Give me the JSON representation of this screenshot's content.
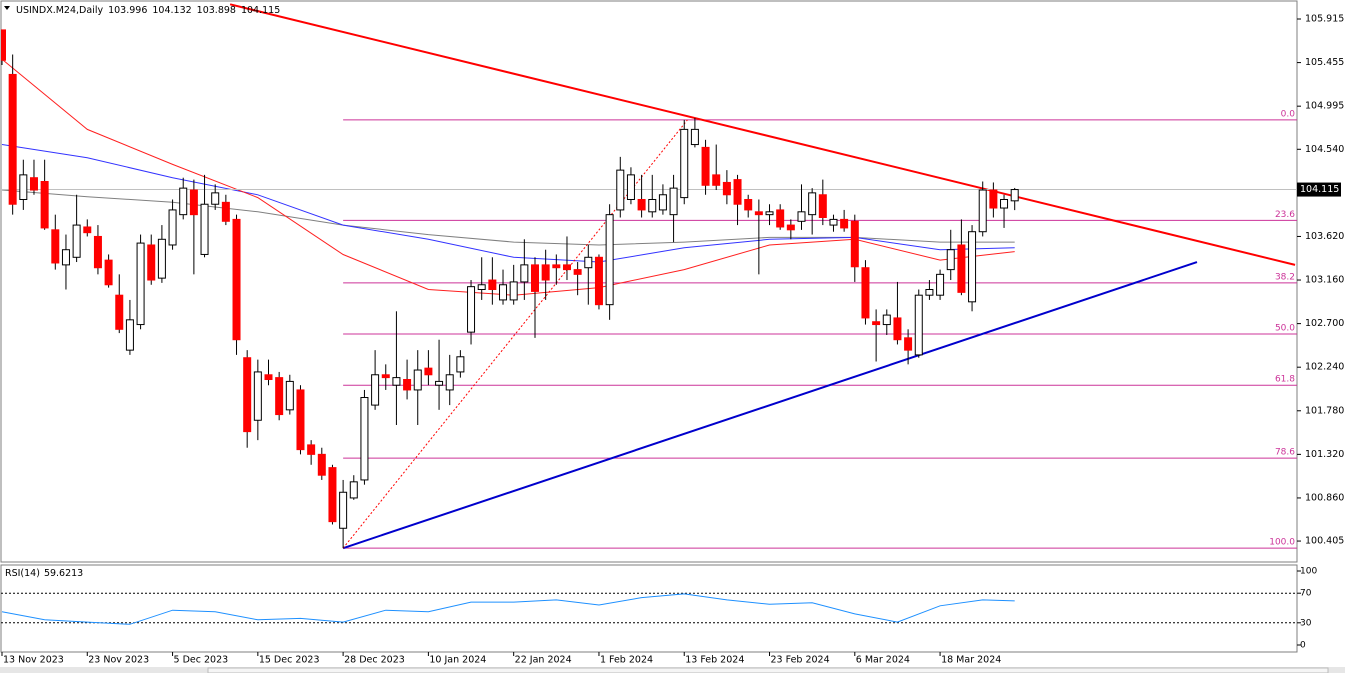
{
  "chart_data": [
    {
      "type": "candlestick",
      "title": "USINDX.M24,Daily",
      "categories": [
        "13 Nov 2023",
        null,
        null,
        null,
        null,
        null,
        null,
        null,
        "23 Nov 2023",
        null,
        null,
        null,
        null,
        null,
        null,
        null,
        "5 Dec 2023",
        null,
        null,
        null,
        null,
        null,
        null,
        null,
        "15 Dec 2023",
        null,
        null,
        null,
        null,
        null,
        null,
        null,
        "28 Dec 2023",
        null,
        null,
        null,
        null,
        null,
        null,
        null,
        "10 Jan 2024",
        null,
        null,
        null,
        null,
        null,
        null,
        null,
        "22 Jan 2024",
        null,
        null,
        null,
        null,
        null,
        null,
        null,
        "1 Feb 2024",
        null,
        null,
        null,
        null,
        null,
        null,
        null,
        "13 Feb 2024",
        null,
        null,
        null,
        null,
        null,
        null,
        null,
        "23 Feb 2024",
        null,
        null,
        null,
        null,
        null,
        null,
        null,
        "6 Mar 2024",
        null,
        null,
        null,
        null,
        null,
        null,
        null,
        "18 Mar 2024",
        null,
        null,
        null,
        null,
        null,
        null,
        null
      ],
      "candles": [
        [
          105.8,
          105.8,
          105.43,
          105.48
        ],
        [
          105.33,
          105.54,
          103.85,
          103.96
        ],
        [
          104.01,
          104.43,
          103.9,
          104.27
        ],
        [
          104.24,
          104.43,
          104.06,
          104.11
        ],
        [
          104.2,
          104.43,
          103.69,
          103.71
        ],
        [
          103.69,
          103.85,
          103.27,
          103.34
        ],
        [
          103.32,
          103.64,
          103.06,
          103.48
        ],
        [
          103.4,
          104.06,
          103.35,
          103.74
        ],
        [
          103.72,
          103.8,
          103.62,
          103.66
        ],
        [
          103.62,
          103.74,
          103.22,
          103.29
        ],
        [
          103.37,
          103.43,
          103.08,
          103.11
        ],
        [
          103.0,
          103.22,
          102.6,
          102.64
        ],
        [
          102.42,
          102.95,
          102.37,
          102.74
        ],
        [
          102.69,
          103.64,
          102.64,
          103.55
        ],
        [
          103.53,
          103.64,
          103.11,
          103.16
        ],
        [
          103.18,
          103.74,
          103.13,
          103.59
        ],
        [
          103.53,
          104.01,
          103.48,
          103.9
        ],
        [
          103.85,
          104.24,
          103.8,
          104.13
        ],
        [
          104.11,
          104.22,
          103.22,
          103.85
        ],
        [
          103.43,
          104.27,
          103.4,
          103.96
        ],
        [
          103.96,
          104.17,
          103.9,
          104.08
        ],
        [
          103.98,
          104.06,
          103.74,
          103.78
        ],
        [
          103.8,
          103.85,
          102.37,
          102.53
        ],
        [
          102.34,
          102.42,
          101.39,
          101.56
        ],
        [
          101.68,
          102.32,
          101.47,
          102.19
        ],
        [
          102.16,
          102.32,
          102.05,
          102.11
        ],
        [
          102.13,
          102.19,
          101.68,
          101.74
        ],
        [
          101.79,
          102.16,
          101.74,
          102.09
        ],
        [
          102.0,
          102.05,
          101.32,
          101.37
        ],
        [
          101.42,
          101.47,
          101.21,
          101.32
        ],
        [
          101.32,
          101.39,
          101.05,
          101.1
        ],
        [
          101.18,
          101.21,
          100.58,
          100.61
        ],
        [
          100.54,
          101.05,
          100.33,
          100.92
        ],
        [
          100.86,
          101.1,
          100.84,
          101.03
        ],
        [
          101.05,
          102.0,
          101.0,
          101.92
        ],
        [
          101.84,
          102.42,
          101.79,
          102.16
        ],
        [
          102.16,
          102.27,
          102.0,
          102.13
        ],
        [
          102.05,
          102.83,
          101.63,
          102.13
        ],
        [
          102.11,
          102.32,
          101.9,
          102.0
        ],
        [
          102.0,
          102.42,
          101.63,
          102.21
        ],
        [
          102.23,
          102.42,
          102.05,
          102.16
        ],
        [
          102.05,
          102.53,
          101.79,
          102.09
        ],
        [
          102.0,
          102.37,
          101.84,
          102.16
        ],
        [
          102.19,
          102.42,
          102.13,
          102.35
        ],
        [
          102.61,
          103.16,
          102.48,
          103.09
        ],
        [
          103.06,
          103.4,
          102.95,
          103.11
        ],
        [
          103.16,
          103.4,
          102.9,
          103.06
        ],
        [
          102.95,
          103.27,
          102.9,
          103.11
        ],
        [
          102.95,
          103.32,
          102.9,
          103.14
        ],
        [
          103.14,
          103.59,
          102.95,
          103.32
        ],
        [
          103.32,
          103.4,
          102.55,
          103.04
        ],
        [
          103.32,
          103.48,
          102.95,
          103.16
        ],
        [
          103.32,
          103.43,
          103.11,
          103.29
        ],
        [
          103.32,
          103.62,
          103.16,
          103.27
        ],
        [
          103.27,
          103.35,
          103.0,
          103.22
        ],
        [
          103.29,
          103.53,
          102.9,
          103.4
        ],
        [
          103.4,
          103.43,
          102.85,
          102.9
        ],
        [
          102.9,
          103.96,
          102.74,
          103.85
        ],
        [
          103.9,
          104.46,
          103.82,
          104.32
        ],
        [
          104.01,
          104.35,
          103.96,
          104.27
        ],
        [
          104.01,
          104.27,
          103.82,
          103.9
        ],
        [
          103.88,
          104.27,
          103.82,
          104.01
        ],
        [
          103.9,
          104.17,
          103.85,
          104.06
        ],
        [
          103.85,
          104.27,
          103.56,
          104.13
        ],
        [
          104.03,
          104.85,
          103.96,
          104.75
        ],
        [
          104.59,
          104.87,
          104.56,
          104.75
        ],
        [
          104.56,
          104.64,
          104.06,
          104.16
        ],
        [
          104.27,
          104.59,
          104.11,
          104.16
        ],
        [
          104.19,
          104.32,
          103.96,
          104.06
        ],
        [
          104.22,
          104.27,
          103.74,
          103.96
        ],
        [
          104.01,
          104.06,
          103.82,
          103.9
        ],
        [
          103.88,
          104.01,
          103.22,
          103.85
        ],
        [
          103.85,
          103.96,
          103.74,
          103.88
        ],
        [
          103.9,
          103.96,
          103.69,
          103.72
        ],
        [
          103.74,
          103.8,
          103.59,
          103.69
        ],
        [
          103.78,
          104.17,
          103.69,
          103.88
        ],
        [
          103.85,
          104.13,
          103.64,
          104.08
        ],
        [
          104.06,
          104.22,
          103.74,
          103.82
        ],
        [
          103.74,
          103.85,
          103.67,
          103.8
        ],
        [
          103.8,
          103.9,
          103.67,
          103.71
        ],
        [
          103.78,
          103.85,
          103.14,
          103.3
        ],
        [
          103.29,
          103.37,
          102.69,
          102.76
        ],
        [
          102.72,
          102.85,
          102.3,
          102.69
        ],
        [
          102.69,
          102.85,
          102.58,
          102.79
        ],
        [
          102.76,
          103.14,
          102.48,
          102.53
        ],
        [
          102.55,
          102.64,
          102.27,
          102.42
        ],
        [
          102.37,
          103.06,
          102.34,
          103.0
        ],
        [
          103.0,
          103.16,
          102.95,
          103.06
        ],
        [
          103.0,
          103.27,
          102.95,
          103.22
        ],
        [
          103.27,
          103.69,
          103.16,
          103.48
        ],
        [
          103.53,
          103.8,
          103.0,
          103.03
        ],
        [
          102.93,
          103.74,
          102.83,
          103.67
        ],
        [
          103.67,
          104.2,
          103.62,
          104.11
        ],
        [
          104.11,
          104.19,
          103.82,
          103.92
        ],
        [
          103.92,
          104.06,
          103.71,
          104.01
        ],
        [
          103.996,
          104.132,
          103.898,
          104.115
        ]
      ],
      "up_color": "#ffffff",
      "down_color": "#ff0000",
      "ylim": [
        100.205,
        106.084
      ],
      "yticks": [
        100.405,
        {
          "value": 100.86,
          "label": "100.860"
        },
        {
          "value": 101.32,
          "label": "101.320"
        },
        {
          "value": 101.78,
          "label": "101.780"
        },
        {
          "value": 102.24,
          "label": "102.240"
        },
        {
          "value": 102.7,
          "label": "102.700"
        },
        {
          "value": 103.16,
          "label": "103.160"
        },
        {
          "value": 103.62,
          "label": "103.620"
        },
        {
          "value": 104.54,
          "label": "104.540"
        },
        104.995,
        105.455,
        105.915
      ],
      "moving_averages": [
        {
          "color": "#808080",
          "x": [
            0,
            8,
            16,
            24,
            32,
            40,
            48,
            56,
            64,
            72,
            80,
            88,
            95
          ],
          "values": [
            104.11,
            104.04,
            103.98,
            103.88,
            103.74,
            103.64,
            103.56,
            103.53,
            103.56,
            103.61,
            103.61,
            103.56,
            103.56
          ]
        },
        {
          "color": "#3333ff",
          "x": [
            0,
            8,
            16,
            24,
            32,
            40,
            48,
            56,
            64,
            72,
            80,
            88,
            95
          ],
          "values": [
            104.59,
            104.45,
            104.24,
            104.06,
            103.74,
            103.59,
            103.4,
            103.35,
            103.5,
            103.59,
            103.61,
            103.48,
            103.5
          ]
        },
        {
          "color": "#ff2020",
          "x": [
            0,
            8,
            16,
            24,
            32,
            40,
            48,
            56,
            64,
            72,
            80,
            88,
            95
          ],
          "values": [
            105.49,
            104.75,
            104.38,
            104.03,
            103.43,
            103.06,
            103.0,
            103.08,
            103.27,
            103.53,
            103.59,
            103.37,
            103.46
          ]
        }
      ],
      "trendlines": [
        {
          "color": "#ff0000",
          "style": "solid",
          "x": [
            21.4,
            121.3
          ],
          "y": [
            106.07,
            103.32
          ]
        },
        {
          "color": "#0000cc",
          "style": "solid",
          "x": [
            32,
            112.1
          ],
          "y": [
            100.33,
            103.35
          ]
        },
        {
          "color": "#ff0000",
          "style": "dotted",
          "x": [
            32,
            64.3
          ],
          "y": [
            100.33,
            104.85
          ]
        }
      ],
      "fib_color": "#cc3399",
      "fib_start": 32,
      "fib_levels": [
        {
          "label": "0.0",
          "price": 104.85
        },
        {
          "label": "23.6",
          "price": 103.79
        },
        {
          "label": "38.2",
          "price": 103.13
        },
        {
          "label": "50.0",
          "price": 102.59
        },
        {
          "label": "61.8",
          "price": 102.05
        },
        {
          "label": "78.6",
          "price": 101.28
        },
        {
          "label": "100.0",
          "price": 100.33
        }
      ]
    },
    {
      "type": "line",
      "title": "RSI(14)",
      "color": "#1e90ff",
      "x": [
        0,
        4,
        8,
        12,
        16,
        20,
        24,
        28,
        32,
        36,
        40,
        44,
        48,
        52,
        56,
        60,
        64,
        68,
        72,
        76,
        80,
        84,
        88,
        92,
        95
      ],
      "values": [
        45,
        34,
        31,
        28,
        47,
        45,
        34,
        36,
        31,
        47,
        45,
        58,
        58,
        61,
        54,
        64,
        69,
        61,
        55,
        57,
        42,
        31,
        53,
        61,
        59.6213
      ],
      "ylim": [
        0,
        100
      ],
      "yticks": [
        0,
        30,
        70,
        100
      ],
      "levels": [
        30,
        70
      ]
    }
  ]
}
